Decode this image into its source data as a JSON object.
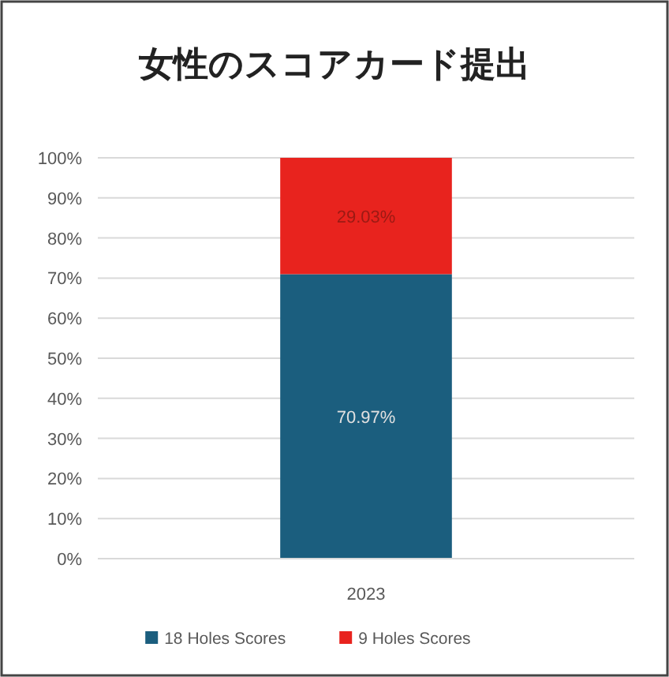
{
  "chart_data": {
    "type": "bar",
    "title": "女性のスコアカード提出",
    "categories": [
      "2023"
    ],
    "stacked": true,
    "series": [
      {
        "name": "18 Holes Scores",
        "color": "#1b5e7e",
        "values": [
          70.97
        ],
        "value_labels": [
          "70.97%"
        ]
      },
      {
        "name": "9 Holes Scores",
        "color": "#e8231e",
        "values": [
          29.03
        ],
        "value_labels": [
          "29.03%"
        ]
      }
    ],
    "ylim": [
      0,
      100
    ],
    "yticks": [
      {
        "value": 0,
        "label": "0%"
      },
      {
        "value": 10,
        "label": "10%"
      },
      {
        "value": 20,
        "label": "20%"
      },
      {
        "value": 30,
        "label": "30%"
      },
      {
        "value": 40,
        "label": "40%"
      },
      {
        "value": 50,
        "label": "50%"
      },
      {
        "value": 60,
        "label": "60%"
      },
      {
        "value": 70,
        "label": "70%"
      },
      {
        "value": 80,
        "label": "80%"
      },
      {
        "value": 90,
        "label": "90%"
      },
      {
        "value": 100,
        "label": "100%"
      }
    ],
    "grid": "y",
    "legend": "bottom"
  }
}
